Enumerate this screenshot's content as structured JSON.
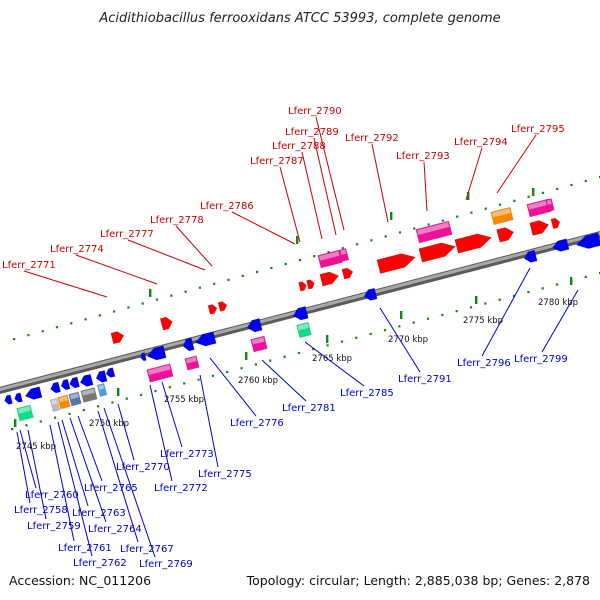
{
  "title": "Acidithiobacillus ferrooxidans ATCC 53993, complete genome",
  "accession": "Accession: NC_011206",
  "topology": "Topology: circular; Length: 2,885,038 bp; Genes: 2,878",
  "colors": {
    "red_strand": "#ff0000",
    "blue_strand": "#0000ee",
    "pink_feature": "#ee1199",
    "orange_feature": "#ff8800",
    "green_feature": "#11dd88",
    "tick_green": "#118811",
    "backbone": "#7f7f7f",
    "label_red": "#cc0000",
    "label_blue": "#0000cc"
  },
  "scale_ticks": [
    "2745 kbp",
    "2750 kbp",
    "2755 kbp",
    "2760 kbp",
    "2765 kbp",
    "2770 kbp",
    "2775 kbp",
    "2780 kbp"
  ],
  "forward_labels": [
    "Lferr_2771",
    "Lferr_2774",
    "Lferr_2777",
    "Lferr_2778",
    "Lferr_2786",
    "Lferr_2787",
    "Lferr_2788",
    "Lferr_2789",
    "Lferr_2790",
    "Lferr_2792",
    "Lferr_2793",
    "Lferr_2794",
    "Lferr_2795"
  ],
  "reverse_labels": [
    "Lferr_2760",
    "Lferr_2758",
    "Lferr_2759",
    "Lferr_2761",
    "Lferr_2762",
    "Lferr_2763",
    "Lferr_2764",
    "Lferr_2765",
    "Lferr_2767",
    "Lferr_2769",
    "Lferr_2770",
    "Lferr_2772",
    "Lferr_2773",
    "Lferr_2775",
    "Lferr_2776",
    "Lferr_2781",
    "Lferr_2785",
    "Lferr_2791",
    "Lferr_2796",
    "Lferr_2799"
  ]
}
